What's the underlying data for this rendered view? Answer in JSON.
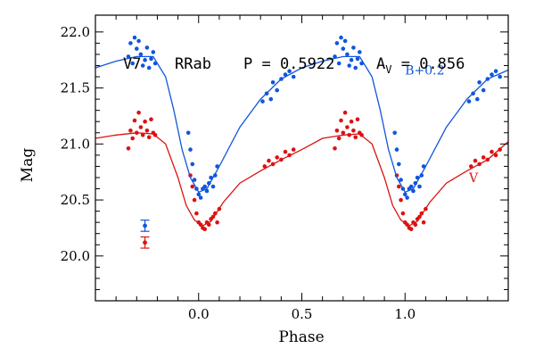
{
  "chart_data": {
    "type": "scatter",
    "header": {
      "star": "V7",
      "class": "RRab",
      "period_label": "P = 0.5922",
      "amp_main": "A",
      "amp_sub": "V",
      "amp_value": " = 0.856"
    },
    "xlabel": "Phase",
    "ylabel": "Mag",
    "xlim": [
      -0.5,
      1.5
    ],
    "ylim": [
      22.15,
      19.6
    ],
    "y_inverted": true,
    "grid": false,
    "xticks": [
      {
        "v": 0.0,
        "label": "0.0"
      },
      {
        "v": 0.5,
        "label": "0.5"
      },
      {
        "v": 1.0,
        "label": "1.0"
      }
    ],
    "yticks": [
      {
        "v": 20.0,
        "label": "20.0"
      },
      {
        "v": 20.5,
        "label": "20.5"
      },
      {
        "v": 21.0,
        "label": "21.0"
      },
      {
        "v": 21.5,
        "label": "21.5"
      },
      {
        "v": 22.0,
        "label": "22.0"
      }
    ],
    "series": [
      {
        "name": "V",
        "color": "#dd1111",
        "error_bar": {
          "x": -0.26,
          "y": 20.12,
          "err": 0.05
        },
        "points": [
          [
            -0.34,
            20.96
          ],
          [
            -0.33,
            21.12
          ],
          [
            -0.32,
            21.05
          ],
          [
            -0.31,
            21.21
          ],
          [
            -0.3,
            21.1
          ],
          [
            -0.29,
            21.28
          ],
          [
            -0.28,
            21.15
          ],
          [
            -0.27,
            21.08
          ],
          [
            -0.26,
            21.2
          ],
          [
            -0.25,
            21.12
          ],
          [
            -0.24,
            21.06
          ],
          [
            -0.23,
            21.22
          ],
          [
            -0.22,
            21.1
          ],
          [
            -0.21,
            21.08
          ],
          [
            -0.04,
            20.72
          ],
          [
            -0.03,
            20.62
          ],
          [
            -0.02,
            20.5
          ],
          [
            -0.01,
            20.38
          ],
          [
            0.0,
            20.3
          ],
          [
            0.01,
            20.28
          ],
          [
            0.02,
            20.25
          ],
          [
            0.03,
            20.24
          ],
          [
            0.04,
            20.3
          ],
          [
            0.05,
            20.28
          ],
          [
            0.06,
            20.33
          ],
          [
            0.07,
            20.35
          ],
          [
            0.08,
            20.38
          ],
          [
            0.09,
            20.3
          ],
          [
            0.1,
            20.42
          ],
          [
            0.32,
            20.8
          ],
          [
            0.34,
            20.85
          ],
          [
            0.36,
            20.82
          ],
          [
            0.38,
            20.88
          ],
          [
            0.4,
            20.86
          ],
          [
            0.42,
            20.93
          ],
          [
            0.44,
            20.9
          ],
          [
            0.46,
            20.95
          ],
          [
            0.66,
            20.96
          ],
          [
            0.67,
            21.12
          ],
          [
            0.68,
            21.05
          ],
          [
            0.69,
            21.21
          ],
          [
            0.7,
            21.1
          ],
          [
            0.71,
            21.28
          ],
          [
            0.72,
            21.15
          ],
          [
            0.73,
            21.08
          ],
          [
            0.74,
            21.2
          ],
          [
            0.75,
            21.12
          ],
          [
            0.76,
            21.06
          ],
          [
            0.77,
            21.22
          ],
          [
            0.78,
            21.1
          ],
          [
            0.79,
            21.08
          ],
          [
            0.96,
            20.72
          ],
          [
            0.97,
            20.62
          ],
          [
            0.98,
            20.5
          ],
          [
            0.99,
            20.38
          ],
          [
            1.0,
            20.3
          ],
          [
            1.01,
            20.28
          ],
          [
            1.02,
            20.25
          ],
          [
            1.03,
            20.24
          ],
          [
            1.04,
            20.3
          ],
          [
            1.05,
            20.28
          ],
          [
            1.06,
            20.33
          ],
          [
            1.07,
            20.35
          ],
          [
            1.08,
            20.38
          ],
          [
            1.09,
            20.3
          ],
          [
            1.1,
            20.42
          ],
          [
            1.32,
            20.8
          ],
          [
            1.34,
            20.85
          ],
          [
            1.36,
            20.82
          ],
          [
            1.38,
            20.88
          ],
          [
            1.4,
            20.86
          ],
          [
            1.42,
            20.93
          ],
          [
            1.44,
            20.9
          ],
          [
            1.46,
            20.95
          ]
        ],
        "curve": [
          [
            -0.5,
            21.05
          ],
          [
            -0.4,
            21.08
          ],
          [
            -0.3,
            21.1
          ],
          [
            -0.22,
            21.09
          ],
          [
            -0.16,
            21.0
          ],
          [
            -0.1,
            20.7
          ],
          [
            -0.06,
            20.45
          ],
          [
            -0.02,
            20.32
          ],
          [
            0.02,
            20.27
          ],
          [
            0.06,
            20.31
          ],
          [
            0.12,
            20.48
          ],
          [
            0.2,
            20.65
          ],
          [
            0.3,
            20.76
          ],
          [
            0.4,
            20.86
          ],
          [
            0.5,
            20.95
          ],
          [
            0.6,
            21.05
          ],
          [
            0.7,
            21.08
          ],
          [
            0.78,
            21.09
          ],
          [
            0.84,
            21.0
          ],
          [
            0.9,
            20.7
          ],
          [
            0.94,
            20.45
          ],
          [
            0.98,
            20.32
          ],
          [
            1.02,
            20.27
          ],
          [
            1.06,
            20.31
          ],
          [
            1.12,
            20.48
          ],
          [
            1.2,
            20.65
          ],
          [
            1.3,
            20.76
          ],
          [
            1.4,
            20.86
          ],
          [
            1.5,
            21.02
          ]
        ],
        "label": {
          "text": "V",
          "x": 1.31,
          "y": 20.66
        }
      },
      {
        "name": "B+0.2",
        "color": "#1155dd",
        "error_bar": {
          "x": -0.26,
          "y": 20.27,
          "err": 0.05
        },
        "points": [
          [
            -0.34,
            21.78
          ],
          [
            -0.33,
            21.9
          ],
          [
            -0.32,
            21.72
          ],
          [
            -0.31,
            21.95
          ],
          [
            -0.3,
            21.85
          ],
          [
            -0.29,
            21.92
          ],
          [
            -0.28,
            21.8
          ],
          [
            -0.27,
            21.7
          ],
          [
            -0.26,
            21.75
          ],
          [
            -0.25,
            21.86
          ],
          [
            -0.24,
            21.68
          ],
          [
            -0.23,
            21.76
          ],
          [
            -0.22,
            21.82
          ],
          [
            -0.21,
            21.72
          ],
          [
            -0.05,
            21.1
          ],
          [
            -0.04,
            20.95
          ],
          [
            -0.03,
            20.82
          ],
          [
            -0.02,
            20.68
          ],
          [
            -0.01,
            20.6
          ],
          [
            0.0,
            20.55
          ],
          [
            0.01,
            20.52
          ],
          [
            0.02,
            20.6
          ],
          [
            0.03,
            20.62
          ],
          [
            0.04,
            20.58
          ],
          [
            0.05,
            20.65
          ],
          [
            0.06,
            20.7
          ],
          [
            0.07,
            20.62
          ],
          [
            0.08,
            20.72
          ],
          [
            0.09,
            20.8
          ],
          [
            0.31,
            21.38
          ],
          [
            0.33,
            21.45
          ],
          [
            0.35,
            21.4
          ],
          [
            0.36,
            21.55
          ],
          [
            0.38,
            21.48
          ],
          [
            0.4,
            21.58
          ],
          [
            0.42,
            21.62
          ],
          [
            0.44,
            21.65
          ],
          [
            0.46,
            21.6
          ],
          [
            0.66,
            21.78
          ],
          [
            0.67,
            21.9
          ],
          [
            0.68,
            21.72
          ],
          [
            0.69,
            21.95
          ],
          [
            0.7,
            21.85
          ],
          [
            0.71,
            21.92
          ],
          [
            0.72,
            21.8
          ],
          [
            0.73,
            21.7
          ],
          [
            0.74,
            21.75
          ],
          [
            0.75,
            21.86
          ],
          [
            0.76,
            21.68
          ],
          [
            0.77,
            21.76
          ],
          [
            0.78,
            21.82
          ],
          [
            0.79,
            21.72
          ],
          [
            0.95,
            21.1
          ],
          [
            0.96,
            20.95
          ],
          [
            0.97,
            20.82
          ],
          [
            0.98,
            20.68
          ],
          [
            0.99,
            20.6
          ],
          [
            1.0,
            20.55
          ],
          [
            1.01,
            20.52
          ],
          [
            1.02,
            20.6
          ],
          [
            1.03,
            20.62
          ],
          [
            1.04,
            20.58
          ],
          [
            1.05,
            20.65
          ],
          [
            1.06,
            20.7
          ],
          [
            1.07,
            20.62
          ],
          [
            1.08,
            20.72
          ],
          [
            1.09,
            20.8
          ],
          [
            1.31,
            21.38
          ],
          [
            1.33,
            21.45
          ],
          [
            1.35,
            21.4
          ],
          [
            1.36,
            21.55
          ],
          [
            1.38,
            21.48
          ],
          [
            1.4,
            21.58
          ],
          [
            1.42,
            21.62
          ],
          [
            1.44,
            21.65
          ],
          [
            1.46,
            21.6
          ]
        ],
        "curve": [
          [
            -0.5,
            21.68
          ],
          [
            -0.4,
            21.74
          ],
          [
            -0.3,
            21.78
          ],
          [
            -0.22,
            21.78
          ],
          [
            -0.16,
            21.6
          ],
          [
            -0.12,
            21.3
          ],
          [
            -0.08,
            20.95
          ],
          [
            -0.04,
            20.7
          ],
          [
            0.0,
            20.57
          ],
          [
            0.04,
            20.6
          ],
          [
            0.1,
            20.8
          ],
          [
            0.2,
            21.15
          ],
          [
            0.3,
            21.4
          ],
          [
            0.4,
            21.58
          ],
          [
            0.5,
            21.68
          ],
          [
            0.6,
            21.74
          ],
          [
            0.7,
            21.78
          ],
          [
            0.78,
            21.78
          ],
          [
            0.84,
            21.6
          ],
          [
            0.88,
            21.3
          ],
          [
            0.92,
            20.95
          ],
          [
            0.96,
            20.7
          ],
          [
            1.0,
            20.57
          ],
          [
            1.04,
            20.6
          ],
          [
            1.1,
            20.8
          ],
          [
            1.2,
            21.15
          ],
          [
            1.3,
            21.4
          ],
          [
            1.4,
            21.58
          ],
          [
            1.5,
            21.66
          ]
        ],
        "label": {
          "text": "B+0.2",
          "x": 1.0,
          "y": 21.62
        }
      }
    ]
  }
}
